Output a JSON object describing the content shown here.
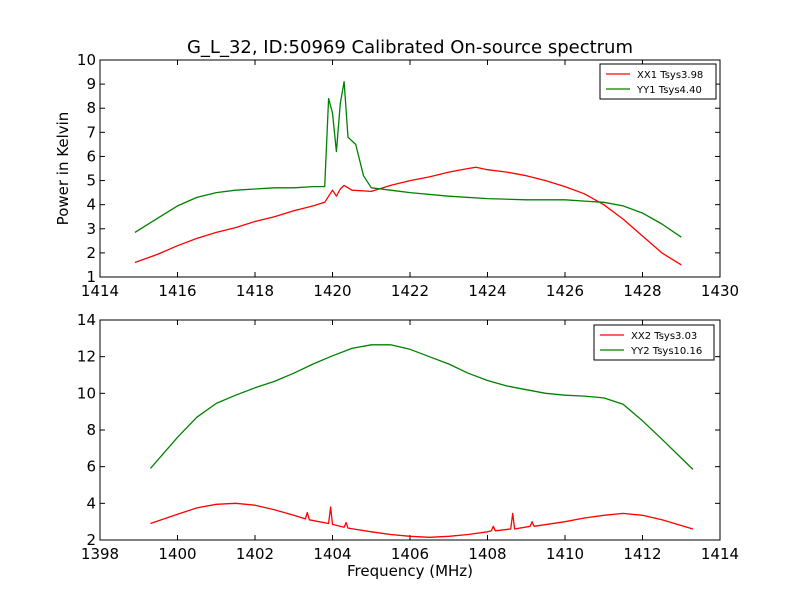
{
  "title": "G_L_32, ID:50969 Calibrated On-source spectrum",
  "chart_data": [
    {
      "type": "line",
      "xlabel": "",
      "ylabel": "Power in Kelvin",
      "xlim": [
        1414,
        1430
      ],
      "ylim": [
        1,
        10
      ],
      "xticks": [
        "1414",
        "1416",
        "1418",
        "1420",
        "1422",
        "1424",
        "1426",
        "1428",
        "1430"
      ],
      "yticks": [
        "1",
        "2",
        "3",
        "4",
        "5",
        "6",
        "7",
        "8",
        "9",
        "10"
      ],
      "legend_position": "top-right",
      "series": [
        {
          "name": "XX1 Tsys3.98",
          "color": "#ff0000",
          "x": [
            1414.9,
            1415.5,
            1416,
            1416.5,
            1417,
            1417.5,
            1418,
            1418.5,
            1419,
            1419.5,
            1419.8,
            1420.0,
            1420.1,
            1420.2,
            1420.3,
            1420.5,
            1421,
            1421.5,
            1422,
            1422.5,
            1423,
            1423.5,
            1423.7,
            1424,
            1424.5,
            1425,
            1425.5,
            1426,
            1426.5,
            1427,
            1427.5,
            1428,
            1428.5,
            1429
          ],
          "y": [
            1.6,
            1.95,
            2.3,
            2.6,
            2.85,
            3.05,
            3.3,
            3.5,
            3.75,
            3.95,
            4.1,
            4.6,
            4.35,
            4.65,
            4.8,
            4.6,
            4.55,
            4.8,
            5.0,
            5.15,
            5.35,
            5.5,
            5.55,
            5.45,
            5.35,
            5.2,
            5.0,
            4.75,
            4.45,
            4.0,
            3.4,
            2.7,
            2.0,
            1.5
          ]
        },
        {
          "name": "YY1 Tsys4.40",
          "color": "#008000",
          "x": [
            1414.9,
            1415.5,
            1416,
            1416.5,
            1417,
            1417.5,
            1418,
            1418.5,
            1419,
            1419.5,
            1419.8,
            1419.9,
            1420.0,
            1420.1,
            1420.2,
            1420.3,
            1420.4,
            1420.6,
            1420.8,
            1421,
            1421.5,
            1422,
            1423,
            1424,
            1425,
            1426,
            1426.5,
            1427,
            1427.5,
            1428,
            1428.5,
            1429
          ],
          "y": [
            2.85,
            3.45,
            3.95,
            4.3,
            4.5,
            4.6,
            4.65,
            4.7,
            4.7,
            4.75,
            4.75,
            8.4,
            7.8,
            6.2,
            8.2,
            9.1,
            6.8,
            6.5,
            5.2,
            4.7,
            4.6,
            4.5,
            4.35,
            4.25,
            4.2,
            4.2,
            4.15,
            4.1,
            3.95,
            3.65,
            3.2,
            2.65
          ]
        }
      ]
    },
    {
      "type": "line",
      "xlabel": "Frequency (MHz)",
      "ylabel": "",
      "xlim": [
        1398,
        1414
      ],
      "ylim": [
        2,
        14
      ],
      "xticks": [
        "1398",
        "1400",
        "1402",
        "1404",
        "1406",
        "1408",
        "1410",
        "1412",
        "1414"
      ],
      "yticks": [
        "2",
        "4",
        "6",
        "8",
        "10",
        "12",
        "14"
      ],
      "legend_position": "top-right",
      "series": [
        {
          "name": "XX2 Tsys3.03",
          "color": "#ff0000",
          "x": [
            1399.3,
            1400,
            1400.5,
            1401,
            1401.5,
            1402,
            1402.5,
            1403,
            1403.3,
            1403.35,
            1403.4,
            1403.9,
            1403.95,
            1404,
            1404.3,
            1404.35,
            1404.4,
            1405,
            1405.5,
            1406,
            1406.5,
            1407,
            1407.5,
            1408,
            1408.1,
            1408.15,
            1408.2,
            1408.6,
            1408.65,
            1408.7,
            1409.1,
            1409.15,
            1409.2,
            1410,
            1410.5,
            1411,
            1411.5,
            1412,
            1412.5,
            1413.3
          ],
          "y": [
            2.9,
            3.4,
            3.75,
            3.95,
            4.0,
            3.9,
            3.65,
            3.35,
            3.15,
            3.5,
            3.1,
            2.9,
            3.8,
            2.85,
            2.7,
            2.95,
            2.65,
            2.45,
            2.3,
            2.2,
            2.15,
            2.2,
            2.3,
            2.45,
            2.5,
            2.75,
            2.5,
            2.6,
            3.45,
            2.6,
            2.75,
            3.0,
            2.75,
            3.0,
            3.2,
            3.35,
            3.45,
            3.35,
            3.1,
            2.6
          ]
        },
        {
          "name": "YY2 Tsys10.16",
          "color": "#008000",
          "x": [
            1399.3,
            1400,
            1400.5,
            1401,
            1401.5,
            1402,
            1402.5,
            1403,
            1403.5,
            1404,
            1404.5,
            1405,
            1405.5,
            1406,
            1406.5,
            1407,
            1407.5,
            1408,
            1408.5,
            1409,
            1409.5,
            1410,
            1410.5,
            1411,
            1411.5,
            1412,
            1412.5,
            1413.3
          ],
          "y": [
            5.9,
            7.6,
            8.7,
            9.45,
            9.9,
            10.3,
            10.65,
            11.1,
            11.6,
            12.05,
            12.45,
            12.65,
            12.65,
            12.4,
            12.0,
            11.6,
            11.1,
            10.7,
            10.4,
            10.2,
            10.0,
            9.9,
            9.85,
            9.75,
            9.4,
            8.5,
            7.5,
            5.85
          ]
        }
      ]
    }
  ]
}
